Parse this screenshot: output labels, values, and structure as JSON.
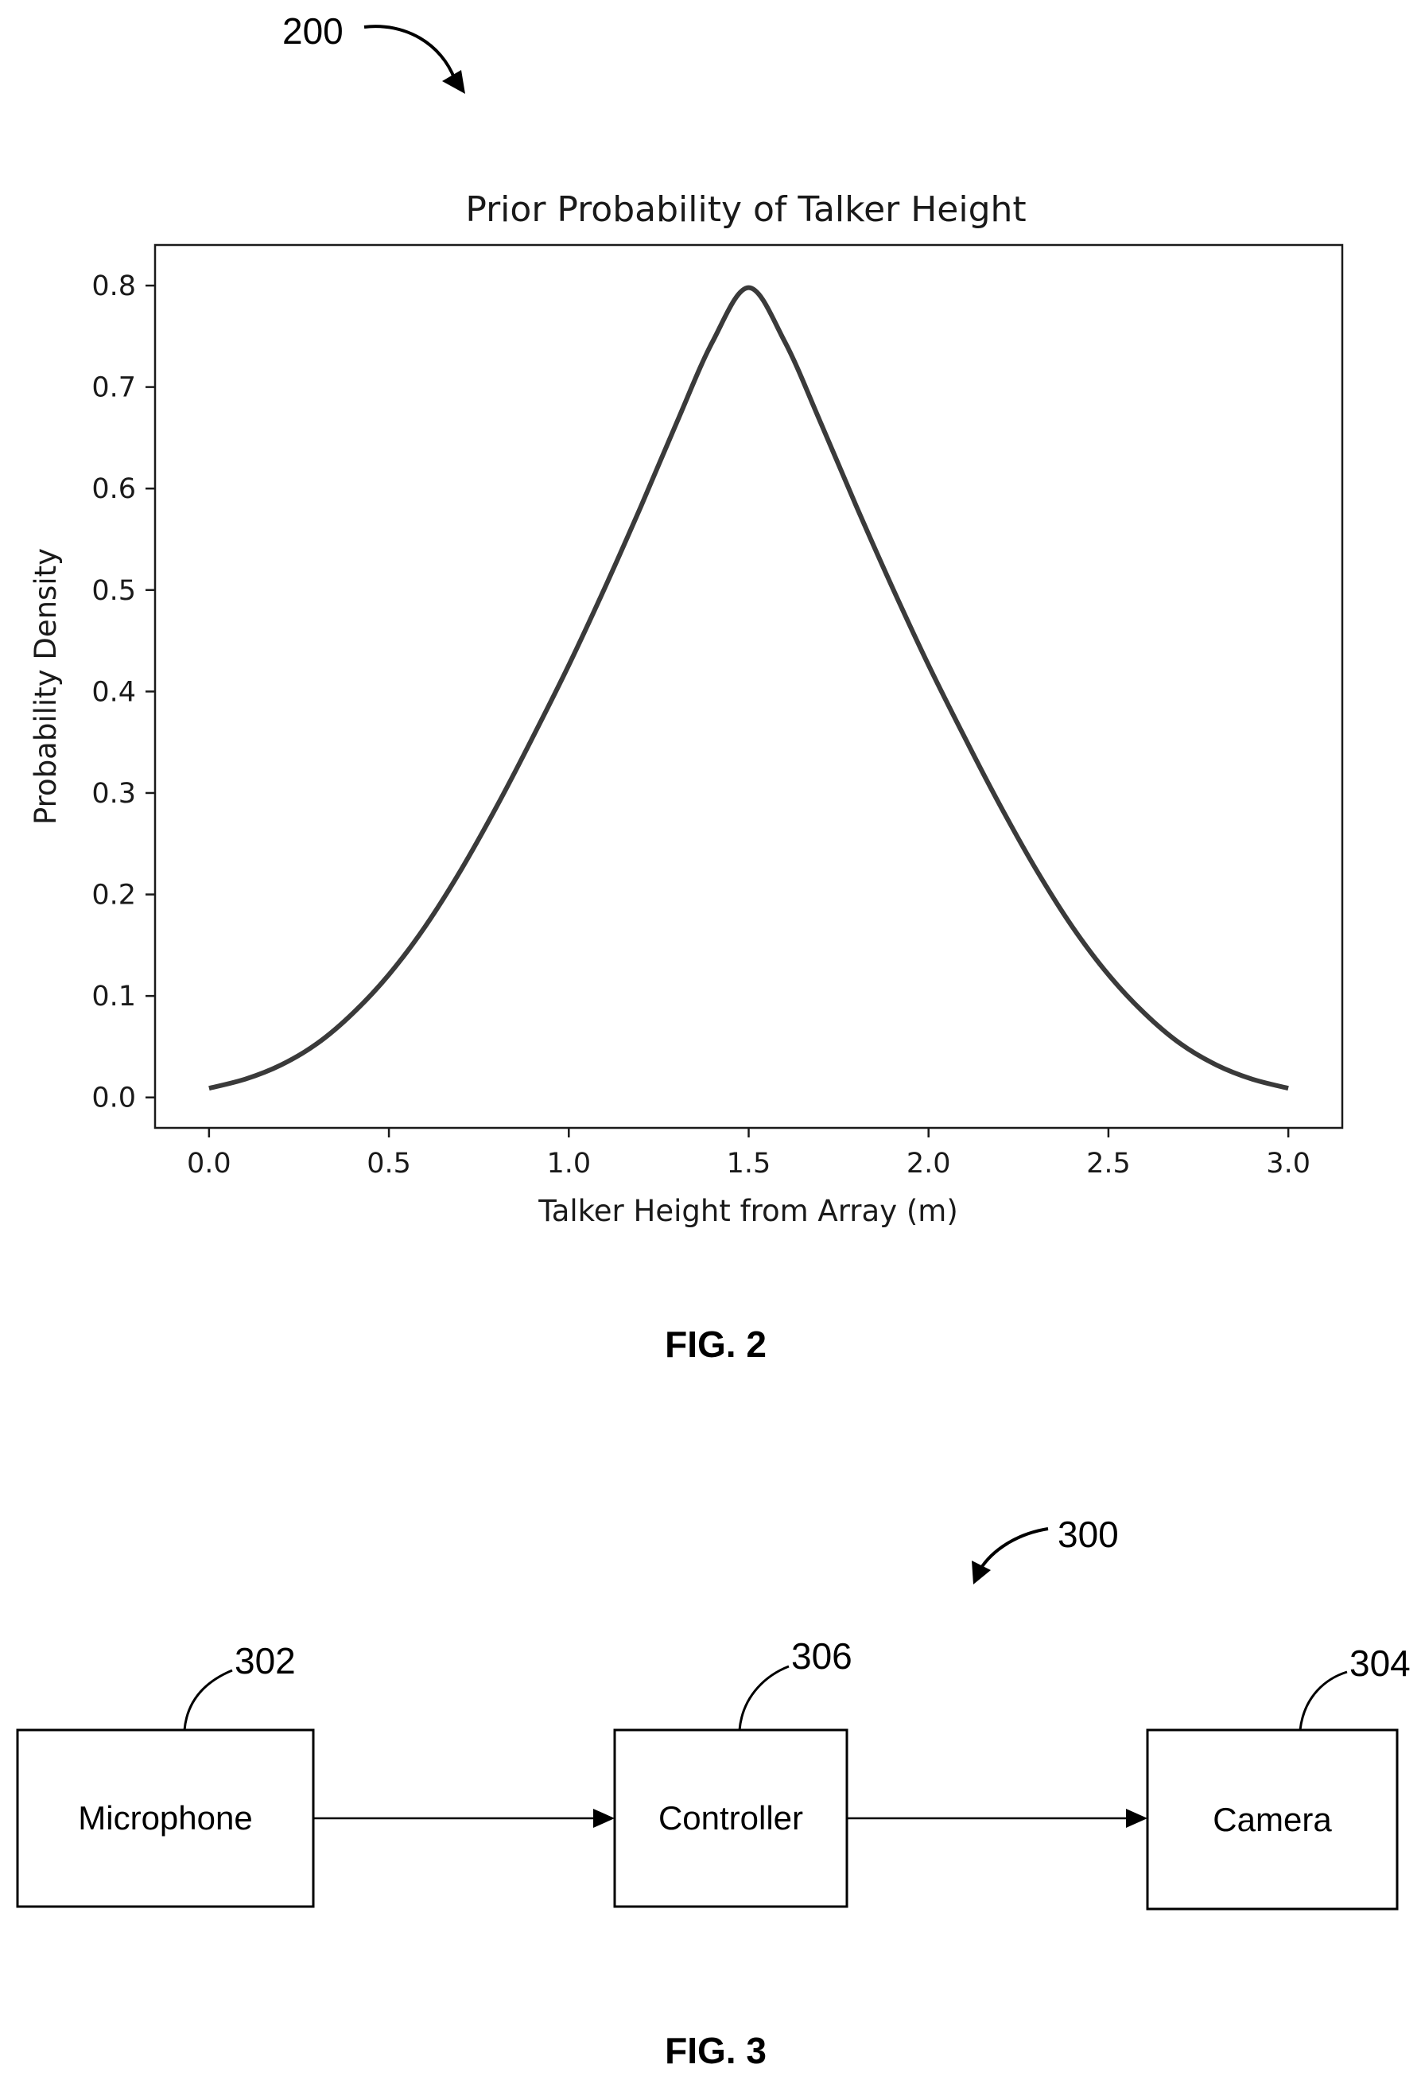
{
  "figure2": {
    "ref_number": "200",
    "fig_label": "FIG. 2"
  },
  "figure3": {
    "ref_number": "300",
    "fig_label": "FIG. 3",
    "blocks": [
      {
        "ref": "302",
        "label": "Microphone"
      },
      {
        "ref": "306",
        "label": "Controller"
      },
      {
        "ref": "304",
        "label": "Camera"
      }
    ]
  },
  "chart_data": {
    "type": "line",
    "title": "Prior Probability of Talker Height",
    "xlabel": "Talker Height from Array (m)",
    "ylabel": "Probability Density",
    "xlim": [
      -0.15,
      3.15
    ],
    "ylim": [
      -0.03,
      0.84
    ],
    "xticks": [
      "0.0",
      "0.5",
      "1.0",
      "1.5",
      "2.0",
      "2.5",
      "3.0"
    ],
    "yticks": [
      "0.0",
      "0.1",
      "0.2",
      "0.3",
      "0.4",
      "0.5",
      "0.6",
      "0.7",
      "0.8"
    ],
    "grid": false,
    "legend": "none",
    "line_color": "#3a3a3a",
    "series": [
      {
        "x": [
          0.0,
          0.1,
          0.2,
          0.3,
          0.4,
          0.5,
          0.6,
          0.7,
          0.8,
          0.9,
          1.0,
          1.1,
          1.2,
          1.3,
          1.4,
          1.5,
          1.6,
          1.7,
          1.8,
          1.9,
          2.0,
          2.1,
          2.2,
          2.3,
          2.4,
          2.5,
          2.6,
          2.7,
          2.8,
          2.9,
          3.0
        ],
        "y": [
          0.009,
          0.018,
          0.032,
          0.053,
          0.083,
          0.121,
          0.168,
          0.224,
          0.287,
          0.355,
          0.426,
          0.502,
          0.582,
          0.665,
          0.745,
          0.798,
          0.745,
          0.665,
          0.582,
          0.502,
          0.426,
          0.355,
          0.287,
          0.224,
          0.168,
          0.121,
          0.083,
          0.053,
          0.032,
          0.018,
          0.009
        ]
      }
    ]
  }
}
